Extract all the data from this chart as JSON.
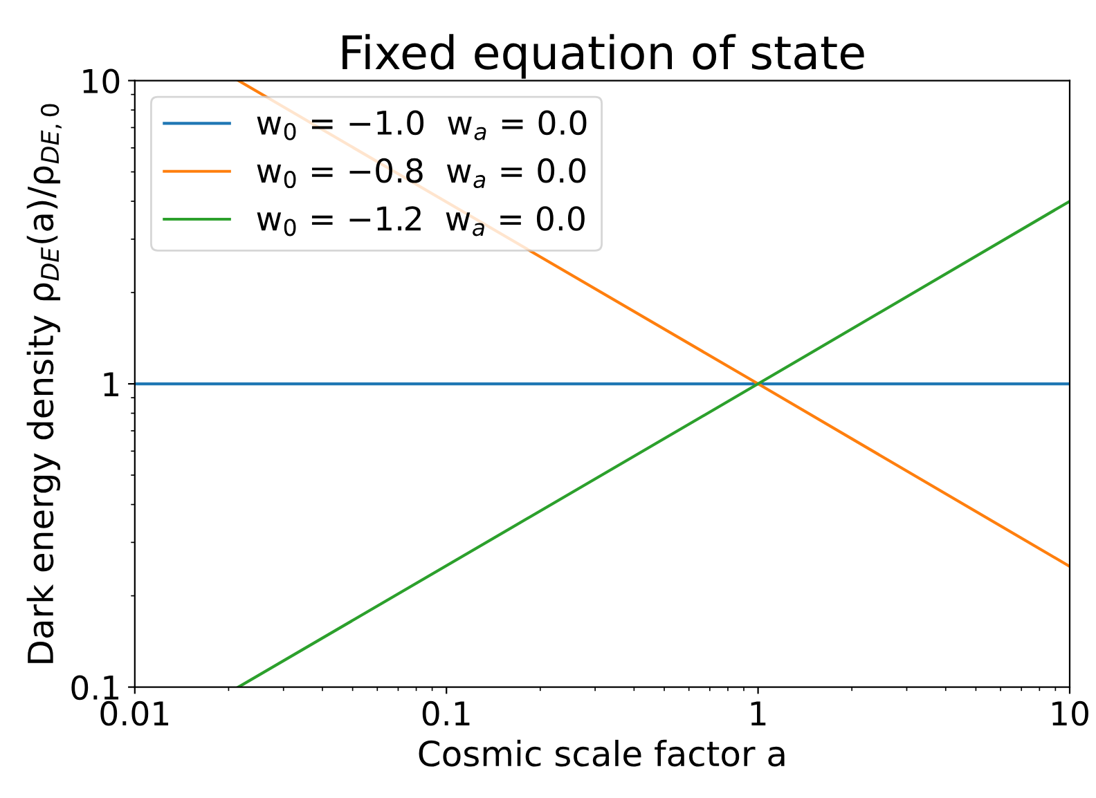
{
  "chart_data": {
    "type": "line",
    "title": "Fixed equation of state",
    "xlabel": "Cosmic scale factor a",
    "ylabel": "Dark energy density ρ$_{DE}$(a)/ρ$_{DE,0}$",
    "log": "xy",
    "xlim": [
      0.01,
      10
    ],
    "ylim": [
      0.1,
      10
    ],
    "xticks": [
      {
        "value": 0.01,
        "label": "0.01"
      },
      {
        "value": 0.1,
        "label": "0.1"
      },
      {
        "value": 1,
        "label": "1"
      },
      {
        "value": 10,
        "label": "10"
      }
    ],
    "yticks": [
      {
        "value": 0.1,
        "label": "0.1"
      },
      {
        "value": 1,
        "label": "1"
      },
      {
        "value": 10,
        "label": "10"
      }
    ],
    "grid": false,
    "legend": "top left",
    "marker": "none",
    "line_style": "solid",
    "series": [
      {
        "name": "w$_{0}$ = −1.0  w$_{a}$ = 0.0",
        "color": "#1f77b4",
        "x": [
          0.01,
          1,
          10
        ],
        "values": [
          1,
          1,
          1
        ]
      },
      {
        "name": "w$_{0}$ = −0.8  w$_{a}$ = 0.0",
        "color": "#ff7f0e",
        "x": [
          0.0215,
          1,
          10
        ],
        "values": [
          10,
          1,
          0.25
        ]
      },
      {
        "name": "w$_{0}$ = −1.2  w$_{a}$ = 0.0",
        "color": "#2ca02c",
        "x": [
          0.0215,
          1,
          10
        ],
        "values": [
          0.1,
          1,
          4
        ]
      }
    ]
  }
}
